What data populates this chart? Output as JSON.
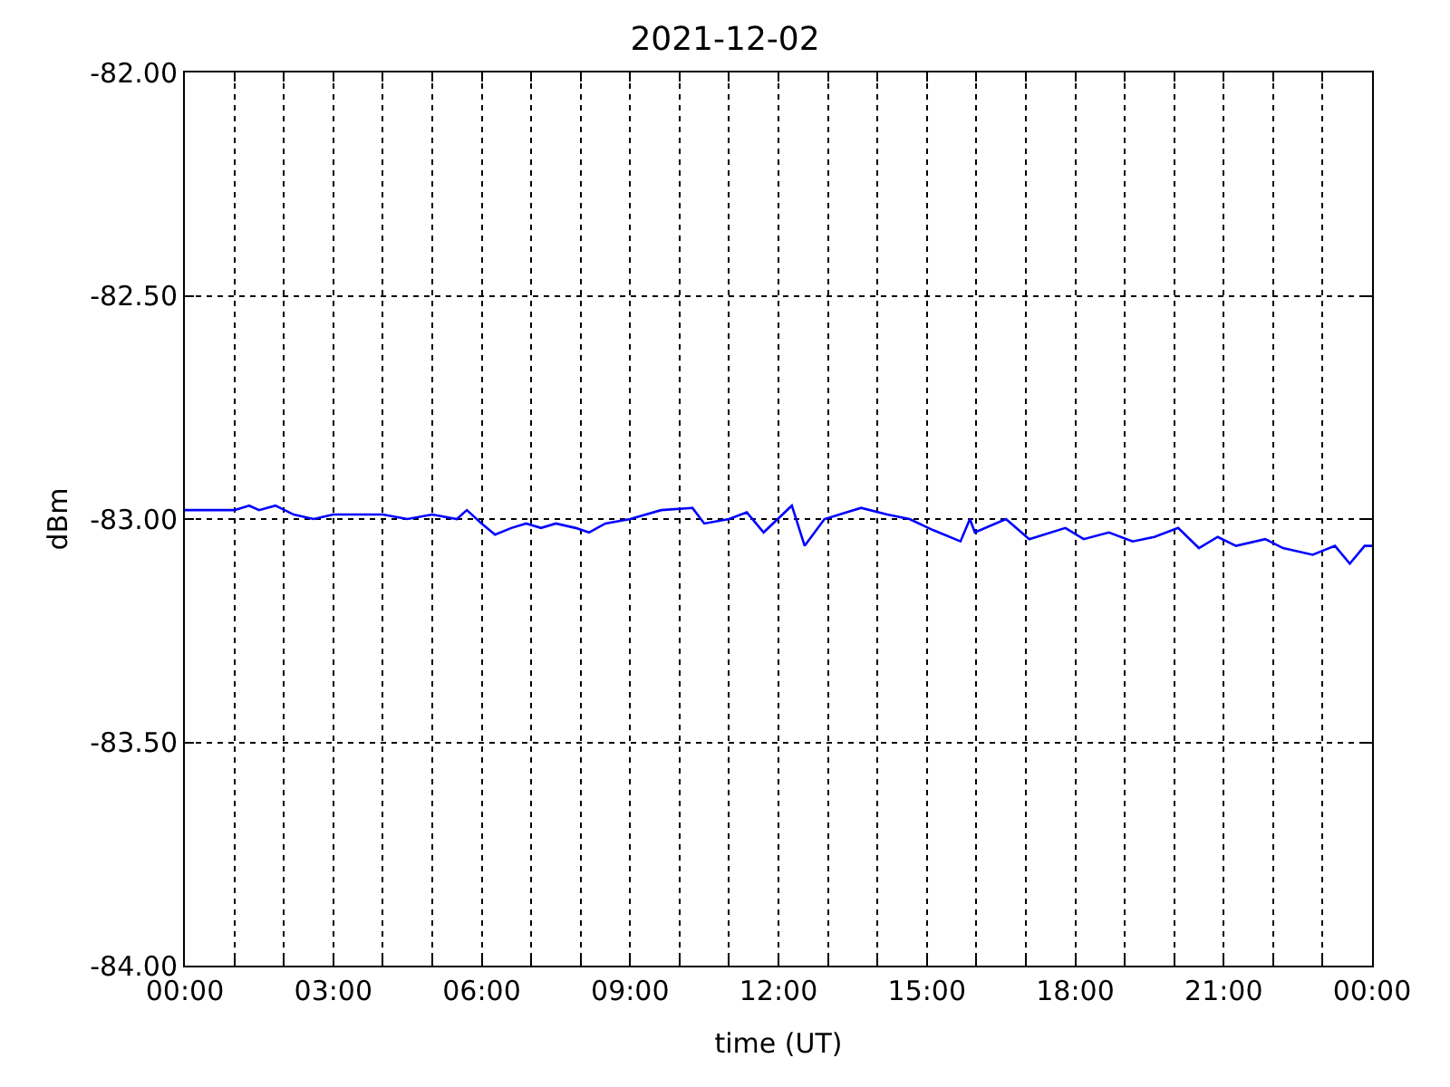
{
  "chart_data": {
    "type": "line",
    "title": "2021-12-02",
    "xlabel": "time (UT)",
    "ylabel": "dBm",
    "x": [
      0,
      0.5,
      1.0,
      1.3,
      1.5,
      1.83,
      2.2,
      2.6,
      3.0,
      3.5,
      4.0,
      4.5,
      5.0,
      5.5,
      5.7,
      6.0,
      6.27,
      6.6,
      6.9,
      7.2,
      7.5,
      7.9,
      8.17,
      8.5,
      9.0,
      9.63,
      10.26,
      10.5,
      11.0,
      11.36,
      11.7,
      12.27,
      12.53,
      12.93,
      13.67,
      14.2,
      14.65,
      15.13,
      15.68,
      15.87,
      15.97,
      16.6,
      17.07,
      17.8,
      18.17,
      18.68,
      19.16,
      19.6,
      20.08,
      20.5,
      20.88,
      21.25,
      21.84,
      22.2,
      22.8,
      23.25,
      23.55,
      23.85,
      24.0
    ],
    "series": [
      {
        "color": "#0000ff",
        "values": [
          -82.98,
          -82.98,
          -82.98,
          -82.97,
          -82.98,
          -82.97,
          -82.99,
          -83.0,
          -82.99,
          -82.99,
          -82.99,
          -83.0,
          -82.99,
          -83.0,
          -82.98,
          -83.01,
          -83.035,
          -83.02,
          -83.01,
          -83.02,
          -83.01,
          -83.02,
          -83.03,
          -83.01,
          -83.0,
          -82.98,
          -82.975,
          -83.01,
          -83.0,
          -82.985,
          -83.03,
          -82.97,
          -83.06,
          -83.0,
          -82.975,
          -82.99,
          -83.0,
          -83.025,
          -83.05,
          -83.0,
          -83.03,
          -83.0,
          -83.045,
          -83.02,
          -83.045,
          -83.03,
          -83.05,
          -83.04,
          -83.02,
          -83.065,
          -83.04,
          -83.06,
          -83.045,
          -83.065,
          -83.08,
          -83.06,
          -83.1,
          -83.06,
          -83.06
        ]
      }
    ],
    "xlim": [
      0,
      24
    ],
    "xticks": [
      {
        "value": 0,
        "label": "00:00"
      },
      {
        "value": 1,
        "label": null
      },
      {
        "value": 2,
        "label": null
      },
      {
        "value": 3,
        "label": "03:00"
      },
      {
        "value": 4,
        "label": null
      },
      {
        "value": 5,
        "label": null
      },
      {
        "value": 6,
        "label": "06:00"
      },
      {
        "value": 7,
        "label": null
      },
      {
        "value": 8,
        "label": null
      },
      {
        "value": 9,
        "label": "09:00"
      },
      {
        "value": 10,
        "label": null
      },
      {
        "value": 11,
        "label": null
      },
      {
        "value": 12,
        "label": "12:00"
      },
      {
        "value": 13,
        "label": null
      },
      {
        "value": 14,
        "label": null
      },
      {
        "value": 15,
        "label": "15:00"
      },
      {
        "value": 16,
        "label": null
      },
      {
        "value": 17,
        "label": null
      },
      {
        "value": 18,
        "label": "18:00"
      },
      {
        "value": 19,
        "label": null
      },
      {
        "value": 20,
        "label": null
      },
      {
        "value": 21,
        "label": "21:00"
      },
      {
        "value": 22,
        "label": null
      },
      {
        "value": 23,
        "label": null
      },
      {
        "value": 24,
        "label": "00:00"
      }
    ],
    "ylim": [
      -84,
      -82
    ],
    "yticks": [
      {
        "value": -84,
        "label": "-84.00"
      },
      {
        "value": -83.5,
        "label": "-83.50"
      },
      {
        "value": -83,
        "label": "-83.00"
      },
      {
        "value": -82.5,
        "label": "-82.50"
      },
      {
        "value": -82,
        "label": "-82.00"
      }
    ],
    "grid": true,
    "legend": false,
    "marker": "none",
    "line_style": "solid"
  }
}
